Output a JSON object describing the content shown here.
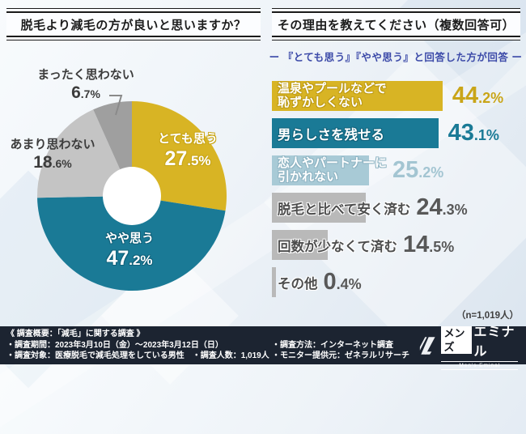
{
  "left_panel": {
    "title": "脱毛より減毛の方が良いと思いますか？"
  },
  "right_panel": {
    "title": "その理由を教えてください（複数回答可）",
    "subtitle": "ー 『とても思う』『やや思う』と回答した方が回答 ー",
    "sample_note": "（n=1,019人）"
  },
  "chart_data": [
    {
      "type": "pie",
      "title": "脱毛より減毛の方が良いと思いますか？",
      "donut": true,
      "start_angle_deg": 0,
      "direction": "clockwise",
      "labels": [
        "とても思う",
        "やや思う",
        "あまり思わない",
        "まったく思わない"
      ],
      "values": [
        27.5,
        47.2,
        18.6,
        6.7
      ],
      "colors": [
        "#d8b424",
        "#1a7a96",
        "#c4c4c4",
        "#9f9f9f"
      ],
      "unit": "%"
    },
    {
      "type": "bar",
      "orientation": "horizontal",
      "title": "その理由を教えてください（複数回答可）",
      "categories": [
        "温泉やプールなどで恥ずかしくない",
        "男らしさを残せる",
        "恋人やパートナーに引かれない",
        "脱毛と比べて安く済む",
        "回数が少なくて済む",
        "その他"
      ],
      "values": [
        44.2,
        43.1,
        25.2,
        24.3,
        14.5,
        0.4
      ],
      "colors": [
        "#d8b424",
        "#1a7a96",
        "#a8cad6",
        "#b9b9b9",
        "#b9b9b9",
        "#b9b9b9"
      ],
      "value_text_colors": [
        "#c9a518",
        "#1a7a96",
        "#a3c5d2",
        "#585858",
        "#585858",
        "#585858"
      ],
      "xlim": [
        0,
        50
      ],
      "unit": "%",
      "sample_n": "n=1,019"
    }
  ],
  "bars": {
    "items": [
      {
        "lines": [
          "温泉やプールなどで",
          "恥ずかしくない"
        ]
      },
      {
        "lines": [
          "男らしさを残せる"
        ]
      },
      {
        "lines": [
          "恋人やパートナーに",
          "引かれない"
        ]
      },
      {
        "lines": [
          "脱毛と比べて安く済む"
        ]
      },
      {
        "lines": [
          "回数が少なくて済む"
        ]
      },
      {
        "lines": [
          "その他"
        ]
      }
    ]
  },
  "footer": {
    "survey_title": "《 調査概要：「減毛」に関する調査 》",
    "period": "・調査期間：2023年3月10日（金）～2023年3月12日（日）",
    "target": "・調査対象：医療脱毛で減毛処理をしている男性　・調査人数：1,019人",
    "method": "・調査方法：インターネット調査",
    "provider": "・モニター提供元：ゼネラルリサーチ",
    "logo": {
      "brand_jp_1": "メンズ",
      "brand_jp_2": "エミナル",
      "brand_en": "Men's Eminal"
    }
  },
  "colors": {
    "accent_yellow": "#d8b424",
    "accent_teal": "#1a7a96",
    "footer_bg": "#1c2431",
    "subtitle_blue": "#3b49a8"
  }
}
